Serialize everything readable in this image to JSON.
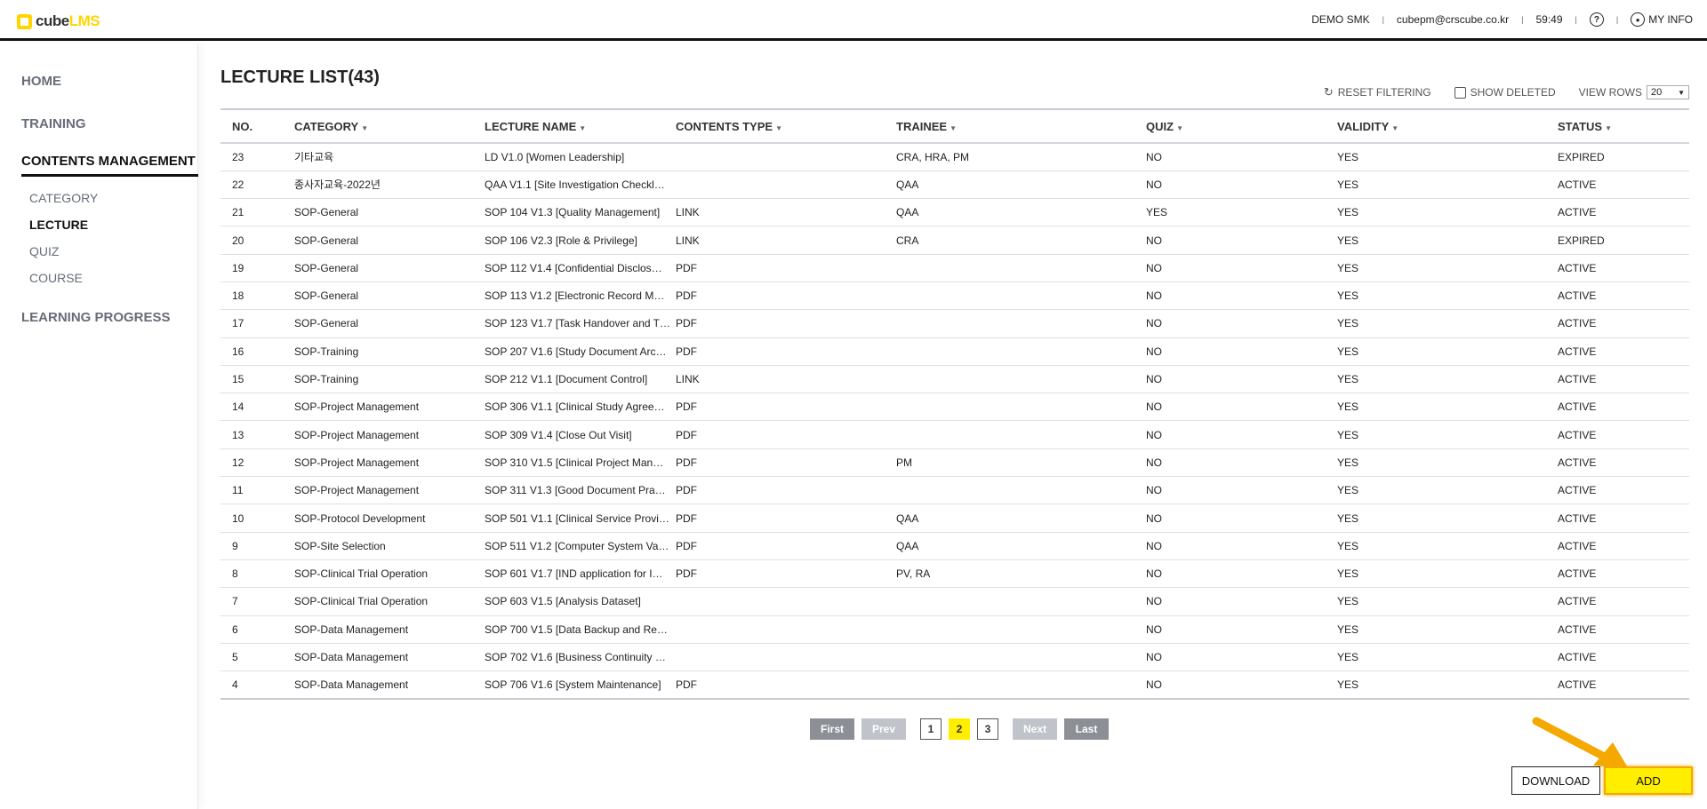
{
  "app": {
    "logo_prefix": "cube",
    "logo_suffix": "LMS"
  },
  "topnav": {
    "user": "DEMO SMK",
    "email": "cubepm@crscube.co.kr",
    "timer": "59:49",
    "help_icon": "question-circle-icon",
    "my_info": "MY INFO",
    "my_info_icon": "user-circle-icon"
  },
  "sidebar": {
    "items": [
      {
        "label": "HOME"
      },
      {
        "label": "TRAINING"
      },
      {
        "label": "CONTENTS MANAGEMENT",
        "active": true
      },
      {
        "label": "LEARNING PROGRESS"
      }
    ],
    "sub_items": [
      {
        "label": "CATEGORY"
      },
      {
        "label": "LECTURE",
        "active": true
      },
      {
        "label": "QUIZ"
      },
      {
        "label": "COURSE"
      }
    ]
  },
  "main": {
    "title": "LECTURE LIST(43)",
    "reset_filtering": "RESET FILTERING",
    "show_deleted": "SHOW DELETED",
    "view_rows_label": "VIEW ROWS",
    "view_rows_value": "20"
  },
  "table": {
    "columns": [
      "NO.",
      "CATEGORY",
      "LECTURE NAME",
      "CONTENTS TYPE",
      "TRAINEE",
      "QUIZ",
      "VALIDITY",
      "STATUS"
    ],
    "rows": [
      [
        "23",
        "기타교육",
        "LD V1.0 [Women Leadership]",
        "",
        "CRA, HRA, PM",
        "NO",
        "YES",
        "EXPIRED"
      ],
      [
        "22",
        "종사자교육-2022년",
        "QAA V1.1 [Site Investigation Checkl…",
        "",
        "QAA",
        "NO",
        "YES",
        "ACTIVE"
      ],
      [
        "21",
        "SOP-General",
        "SOP 104 V1.3 [Quality Management]",
        "LINK",
        "QAA",
        "YES",
        "YES",
        "ACTIVE"
      ],
      [
        "20",
        "SOP-General",
        "SOP 106 V2.3 [Role & Privilege]",
        "LINK",
        "CRA",
        "NO",
        "YES",
        "EXPIRED"
      ],
      [
        "19",
        "SOP-General",
        "SOP 112 V1.4 [Confidential Disclos…",
        "PDF",
        "",
        "NO",
        "YES",
        "ACTIVE"
      ],
      [
        "18",
        "SOP-General",
        "SOP 113 V1.2 [Electronic Record M…",
        "PDF",
        "",
        "NO",
        "YES",
        "ACTIVE"
      ],
      [
        "17",
        "SOP-General",
        "SOP 123 V1.7 [Task Handover and T…",
        "PDF",
        "",
        "NO",
        "YES",
        "ACTIVE"
      ],
      [
        "16",
        "SOP-Training",
        "SOP 207 V1.6 [Study Document Arc…",
        "PDF",
        "",
        "NO",
        "YES",
        "ACTIVE"
      ],
      [
        "15",
        "SOP-Training",
        "SOP 212 V1.1 [Document Control]",
        "LINK",
        "",
        "NO",
        "YES",
        "ACTIVE"
      ],
      [
        "14",
        "SOP-Project Management",
        "SOP 306 V1.1 [Clinical Study Agree…",
        "PDF",
        "",
        "NO",
        "YES",
        "ACTIVE"
      ],
      [
        "13",
        "SOP-Project Management",
        "SOP 309 V1.4 [Close Out Visit]",
        "PDF",
        "",
        "NO",
        "YES",
        "ACTIVE"
      ],
      [
        "12",
        "SOP-Project Management",
        "SOP 310 V1.5 [Clinical Project Man…",
        "PDF",
        "PM",
        "NO",
        "YES",
        "ACTIVE"
      ],
      [
        "11",
        "SOP-Project Management",
        "SOP 311 V1.3 [Good Document Pra…",
        "PDF",
        "",
        "NO",
        "YES",
        "ACTIVE"
      ],
      [
        "10",
        "SOP-Protocol Development",
        "SOP 501 V1.1 [Clinical Service Provi…",
        "PDF",
        "QAA",
        "NO",
        "YES",
        "ACTIVE"
      ],
      [
        "9",
        "SOP-Site Selection",
        "SOP 511 V1.2 [Computer System Va…",
        "PDF",
        "QAA",
        "NO",
        "YES",
        "ACTIVE"
      ],
      [
        "8",
        "SOP-Clinical Trial Operation",
        "SOP 601 V1.7 [IND application for I…",
        "PDF",
        "PV, RA",
        "NO",
        "YES",
        "ACTIVE"
      ],
      [
        "7",
        "SOP-Clinical Trial Operation",
        "SOP 603 V1.5 [Analysis Dataset]",
        "",
        "",
        "NO",
        "YES",
        "ACTIVE"
      ],
      [
        "6",
        "SOP-Data Management",
        "SOP 700 V1.5 [Data Backup and Re…",
        "",
        "",
        "NO",
        "YES",
        "ACTIVE"
      ],
      [
        "5",
        "SOP-Data Management",
        "SOP 702 V1.6 [Business Continuity …",
        "",
        "",
        "NO",
        "YES",
        "ACTIVE"
      ],
      [
        "4",
        "SOP-Data Management",
        "SOP 706 V1.6 [System Maintenance]",
        "PDF",
        "",
        "NO",
        "YES",
        "ACTIVE"
      ]
    ]
  },
  "pagination": {
    "first": "First",
    "prev": "Prev",
    "pages": [
      "1",
      "2",
      "3"
    ],
    "current": "2",
    "next": "Next",
    "last": "Last"
  },
  "actions": {
    "download": "DOWNLOAD",
    "add": "ADD"
  },
  "colors": {
    "accent": "#ffee00",
    "logo": "#ffd400",
    "annotation_arrow": "#f5a800"
  }
}
